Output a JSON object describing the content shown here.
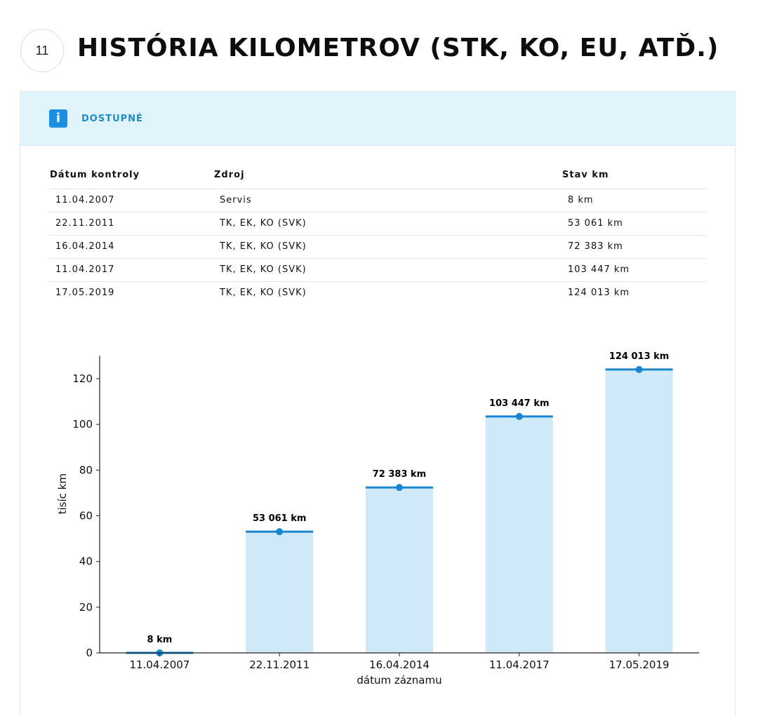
{
  "section": {
    "number": "11",
    "title": "HISTÓRIA KILOMETROV (STK, KO, EU, ATĎ.)"
  },
  "status": {
    "icon": "info-icon",
    "icon_glyph": "i",
    "label": "DOSTUPNÉ",
    "accent_color": "#1a8fe3",
    "header_bg": "#e0f4fb"
  },
  "table": {
    "headers": [
      "Dátum kontroly",
      "Zdroj",
      "Stav km"
    ],
    "rows": [
      [
        "11.04.2007",
        "Servis",
        "8 km"
      ],
      [
        "22.11.2011",
        "TK, EK, KO (SVK)",
        "53 061 km"
      ],
      [
        "16.04.2014",
        "TK, EK, KO (SVK)",
        "72 383 km"
      ],
      [
        "11.04.2017",
        "TK, EK, KO (SVK)",
        "103 447 km"
      ],
      [
        "17.05.2019",
        "TK, EK, KO (SVK)",
        "124 013 km"
      ]
    ]
  },
  "chart_data": {
    "type": "bar",
    "title": "",
    "xlabel": "dátum záznamu",
    "ylabel": "tisíc km",
    "ylim": [
      0,
      130
    ],
    "yticks": [
      0,
      20,
      40,
      60,
      80,
      100,
      120
    ],
    "categories": [
      "11.04.2007",
      "22.11.2011",
      "16.04.2014",
      "11.04.2017",
      "17.05.2019"
    ],
    "values": [
      0.008,
      53.061,
      72.383,
      103.447,
      124.013
    ],
    "data_labels": [
      "8 km",
      "53 061 km",
      "72 383 km",
      "103 447 km",
      "124 013 km"
    ],
    "grid": false,
    "bar_color": "#d0e9f8",
    "line_color": "#1a86cf"
  }
}
